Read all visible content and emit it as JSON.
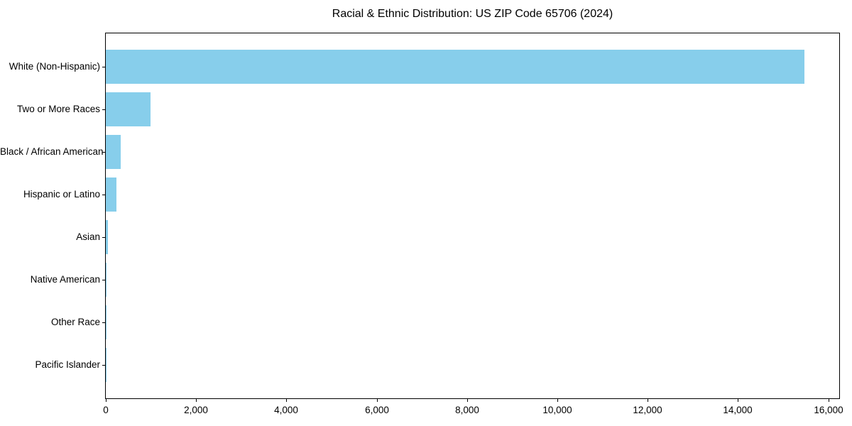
{
  "chart_data": {
    "type": "bar",
    "orientation": "horizontal",
    "title": "Racial & Ethnic Distribution: US ZIP Code 65706 (2024)",
    "categories": [
      "White (Non-Hispanic)",
      "Two or More Races",
      "Black / African American",
      "Hispanic or Latino",
      "Asian",
      "Native American",
      "Other Race",
      "Pacific Islander"
    ],
    "values": [
      15470,
      990,
      330,
      240,
      55,
      15,
      5,
      2
    ],
    "xlabel": "",
    "ylabel": "",
    "xlim": [
      0,
      16243
    ],
    "x_ticks": [
      0,
      2000,
      4000,
      6000,
      8000,
      10000,
      12000,
      14000,
      16000
    ],
    "x_tick_labels": [
      "0",
      "2,000",
      "4,000",
      "6,000",
      "8,000",
      "10,000",
      "12,000",
      "14,000",
      "16,000"
    ],
    "bar_color": "#87CEEB",
    "axis_color": "#000000",
    "text_color": "#000000",
    "grid": false,
    "legend": null,
    "value_labels_shown": false
  }
}
